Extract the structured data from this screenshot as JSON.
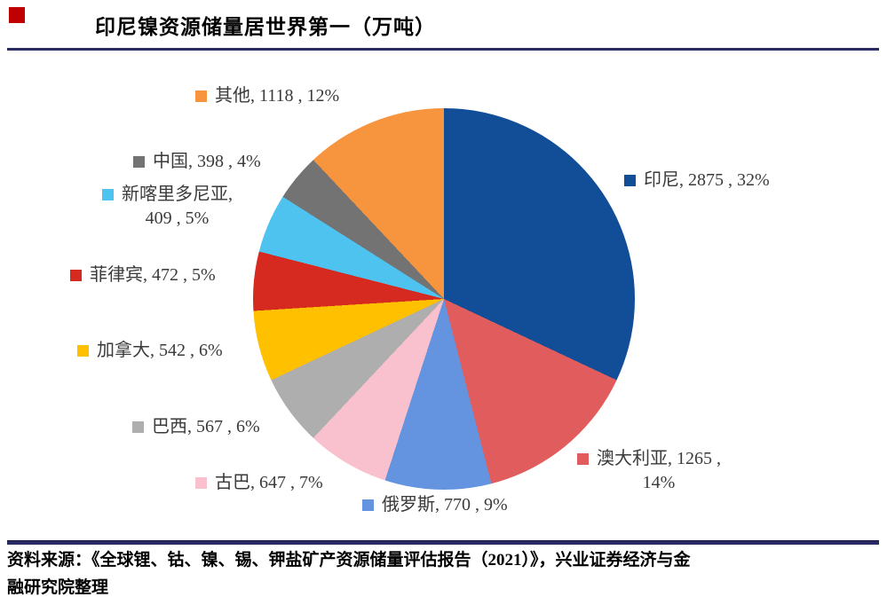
{
  "header": {
    "title": "印尼镍资源储量居世界第一（万吨）",
    "marker_color": "#C00000",
    "rule_color": "#2B2B63"
  },
  "chart_data": {
    "type": "pie",
    "title": "印尼镍资源储量居世界第一（万吨）",
    "unit": "万吨",
    "start_angle_deg": 0,
    "direction": "clockwise",
    "legend_position": "around-labels",
    "slices": [
      {
        "label": "印尼",
        "value": 2875,
        "pct": 32,
        "color": "#114E97"
      },
      {
        "label": "澳大利亚",
        "value": 1265,
        "pct": 14,
        "color": "#E15D5D"
      },
      {
        "label": "俄罗斯",
        "value": 770,
        "pct": 9,
        "color": "#6494E0"
      },
      {
        "label": "古巴",
        "value": 647,
        "pct": 7,
        "color": "#F9C1CE"
      },
      {
        "label": "巴西",
        "value": 567,
        "pct": 6,
        "color": "#AEAEAE"
      },
      {
        "label": "加拿大",
        "value": 542,
        "pct": 6,
        "color": "#FFC000"
      },
      {
        "label": "菲律宾",
        "value": 472,
        "pct": 5,
        "color": "#D62920"
      },
      {
        "label": "新喀里多尼亚",
        "value": 409,
        "pct": 5,
        "color": "#4FC3F0"
      },
      {
        "label": "中国",
        "value": 398,
        "pct": 4,
        "color": "#737373"
      },
      {
        "label": "其他",
        "value": 1118,
        "pct": 12,
        "color": "#F7943E"
      }
    ]
  },
  "display": {
    "other": "其他, 1118 , 12%",
    "china": "中国, 398 , 4%",
    "newcaledonia_line1": "新喀里多尼亚,",
    "newcaledonia_line2": "409 , 5%",
    "philippines": "菲律宾, 472 , 5%",
    "canada": "加拿大, 542 , 6%",
    "brazil": "巴西, 567 , 6%",
    "cuba": "古巴, 647 , 7%",
    "russia": "俄罗斯, 770 , 9%",
    "indonesia": "印尼, 2875 , 32%",
    "australia_line1": "澳大利亚, 1265 ,",
    "australia_line2": "14%"
  },
  "footer": {
    "source_line1": "资料来源：《全球锂、钴、镍、锡、钾盐矿产资源储量评估报告（2021）》，兴业证券经济与金",
    "source_line2": "融研究院整理"
  }
}
